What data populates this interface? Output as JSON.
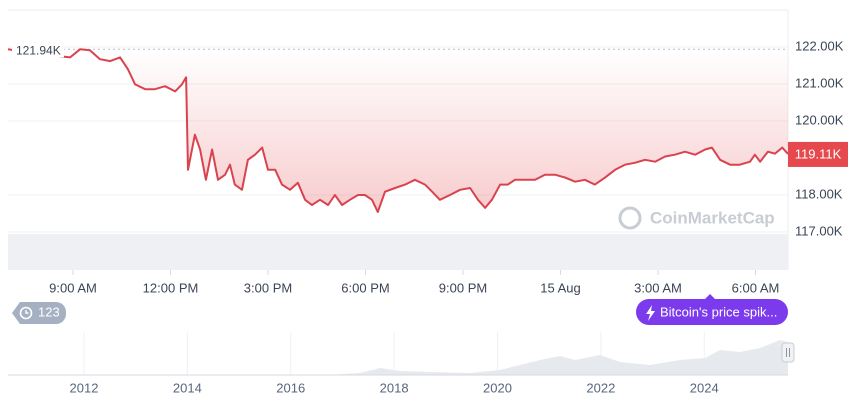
{
  "chart_data": {
    "type": "line",
    "color": "#d9434e",
    "x": [
      7.0,
      7.37,
      7.98,
      8.6,
      8.91,
      9.22,
      9.52,
      9.83,
      10.14,
      10.45,
      10.69,
      10.91,
      11.22,
      11.52,
      11.83,
      12.14,
      12.35,
      12.48,
      12.54,
      12.75,
      12.91,
      13.09,
      13.28,
      13.46,
      13.68,
      13.83,
      13.98,
      14.2,
      14.38,
      14.6,
      14.82,
      15.0,
      15.22,
      15.43,
      15.68,
      15.92,
      16.14,
      16.35,
      16.6,
      16.85,
      17.06,
      17.28,
      17.52,
      17.77,
      17.98,
      18.2,
      18.38,
      18.6,
      18.91,
      19.22,
      19.52,
      19.83,
      20.05,
      20.29,
      20.6,
      20.91,
      21.22,
      21.46,
      21.68,
      21.89,
      22.14,
      22.38,
      22.6,
      22.91,
      23.22,
      23.52,
      23.83,
      24.14,
      24.45,
      24.75,
      25.06,
      25.37,
      25.68,
      25.98,
      26.29,
      26.6,
      26.91,
      27.22,
      27.52,
      27.83,
      28.14,
      28.45,
      28.66,
      28.91,
      29.22,
      29.52,
      29.83,
      29.98,
      30.14,
      30.38,
      30.6,
      30.82,
      31.0
    ],
    "values": [
      121.94,
      121.89,
      121.81,
      121.75,
      121.72,
      121.94,
      121.91,
      121.67,
      121.62,
      121.72,
      121.4,
      120.99,
      120.86,
      120.86,
      120.94,
      120.8,
      120.99,
      121.18,
      118.68,
      119.63,
      119.23,
      118.41,
      119.23,
      118.41,
      118.55,
      118.82,
      118.28,
      118.14,
      118.95,
      119.09,
      119.28,
      118.68,
      118.68,
      118.28,
      118.14,
      118.33,
      117.87,
      117.73,
      117.87,
      117.73,
      118.0,
      117.73,
      117.87,
      118.0,
      118.0,
      117.87,
      117.54,
      118.09,
      118.19,
      118.28,
      118.41,
      118.28,
      118.09,
      117.87,
      118.0,
      118.14,
      118.19,
      117.87,
      117.65,
      117.87,
      118.28,
      118.28,
      118.41,
      118.41,
      118.41,
      118.55,
      118.55,
      118.47,
      118.36,
      118.41,
      118.28,
      118.47,
      118.68,
      118.82,
      118.87,
      118.95,
      118.9,
      119.04,
      119.09,
      119.17,
      119.09,
      119.23,
      119.28,
      118.95,
      118.82,
      118.82,
      118.9,
      119.09,
      118.9,
      119.17,
      119.12,
      119.28,
      119.11
    ],
    "xlim": [
      7,
      31
    ],
    "xticks": [
      {
        "value": 9,
        "label": "9:00 AM"
      },
      {
        "value": 12,
        "label": "12:00 PM"
      },
      {
        "value": 15,
        "label": "3:00 PM"
      },
      {
        "value": 18,
        "label": "6:00 PM"
      },
      {
        "value": 21,
        "label": "9:00 PM"
      },
      {
        "value": 24,
        "label": "15 Aug"
      },
      {
        "value": 27,
        "label": "3:00 AM"
      },
      {
        "value": 30,
        "label": "6:00 AM"
      }
    ],
    "ylim": [
      117,
      123
    ],
    "yticks": [
      {
        "value": 117,
        "label": "117.00K"
      },
      {
        "value": 118,
        "label": "118.00K"
      },
      {
        "value": 120,
        "label": "120.00K"
      },
      {
        "value": 121,
        "label": "121.00K"
      },
      {
        "value": 122,
        "label": "122.00K"
      }
    ],
    "grid": true,
    "high": {
      "value": 121.94,
      "label": "121.94K"
    },
    "current": {
      "value": 119.11,
      "label": "119.11K",
      "color": "#e5484d"
    },
    "watermark": "CoinMarketCap",
    "badge": "123",
    "event": "Bitcoin's price spik...",
    "event_color": "#7c3aed",
    "navigator": {
      "xlim": [
        2010.53,
        2025.62
      ],
      "xticks": [
        2012,
        2014,
        2016,
        2018,
        2020,
        2022,
        2024
      ]
    }
  }
}
